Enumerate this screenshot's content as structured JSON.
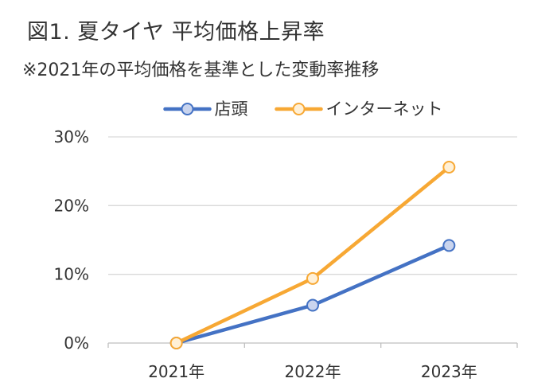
{
  "title": "図1. 夏タイヤ 平均価格上昇率",
  "subtitle": "※2021年の平均価格を基準とした変動率推移",
  "chart_data": {
    "type": "line",
    "categories": [
      "2021年",
      "2022年",
      "2023年"
    ],
    "series": [
      {
        "name": "店頭",
        "values": [
          0,
          5.5,
          14.2
        ],
        "color": "#4472C4",
        "marker_fill": "#C9D4EE"
      },
      {
        "name": "インターネット",
        "values": [
          0,
          9.4,
          25.6
        ],
        "color": "#F7A834",
        "marker_fill": "#FFF0D6"
      }
    ],
    "y_ticks": [
      0,
      10,
      20,
      30
    ],
    "y_tick_labels": [
      "0%",
      "10%",
      "20%",
      "30%"
    ],
    "ylim": [
      0,
      30
    ],
    "y_unit": "%",
    "legend_position": "top",
    "grid": "horizontal",
    "grid_color": "#D9D9D9",
    "axis_color": "#BFBFBF"
  }
}
